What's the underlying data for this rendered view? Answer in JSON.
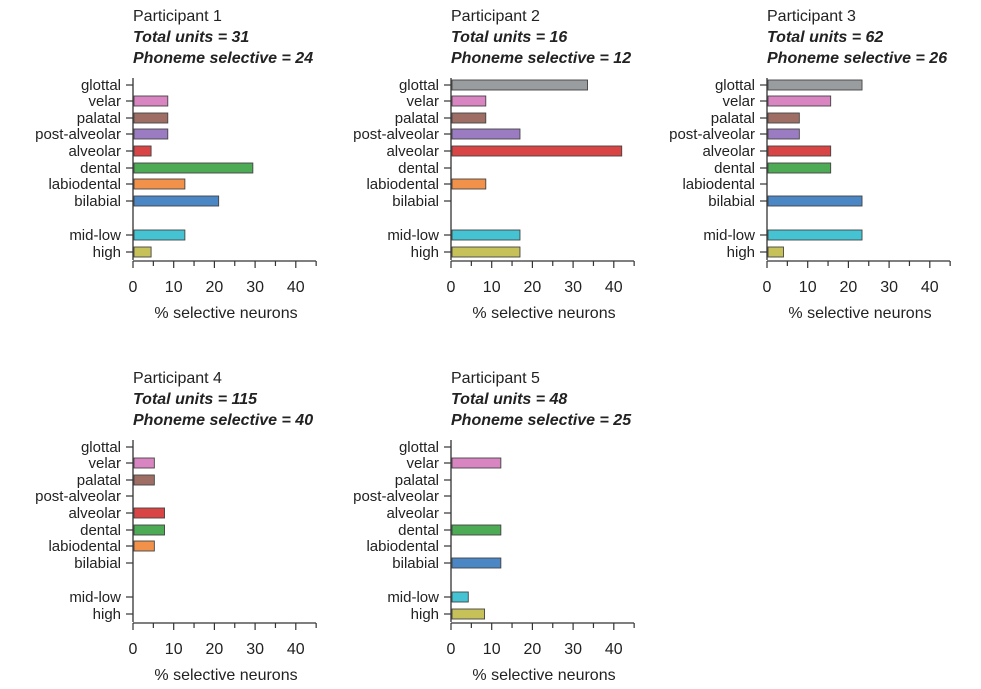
{
  "categories": [
    "glottal",
    "velar",
    "palatal",
    "post-alveolar",
    "alveolar",
    "dental",
    "labiodental",
    "bilabial",
    "mid-low",
    "high"
  ],
  "colors": {
    "glottal": "#9a9da0",
    "velar": "#d985c2",
    "palatal": "#9e6e64",
    "post-alveolar": "#9b7cc2",
    "alveolar": "#d94545",
    "dental": "#4daa55",
    "labiodental": "#f2914a",
    "bilabial": "#4b86c5",
    "mid-low": "#45c3d2",
    "high": "#c7c15a"
  },
  "chart_data": [
    {
      "type": "bar",
      "title": "Participant 1",
      "subtitle_units": "Total units = 31",
      "subtitle_selective": "Phoneme selective = 24",
      "xlabel": "% selective neurons",
      "xlim": [
        0,
        45
      ],
      "xticks": [
        0,
        10,
        20,
        30,
        40
      ],
      "categories": [
        "glottal",
        "velar",
        "palatal",
        "post-alveolar",
        "alveolar",
        "dental",
        "labiodental",
        "bilabial",
        "mid-low",
        "high"
      ],
      "values": [
        0,
        8.3,
        8.3,
        8.3,
        4.2,
        29.2,
        12.5,
        20.8,
        12.5,
        4.2
      ]
    },
    {
      "type": "bar",
      "title": "Participant 2",
      "subtitle_units": "Total units = 16",
      "subtitle_selective": "Phoneme selective = 12",
      "xlabel": "% selective neurons",
      "xlim": [
        0,
        45
      ],
      "xticks": [
        0,
        10,
        20,
        30,
        40
      ],
      "categories": [
        "glottal",
        "velar",
        "palatal",
        "post-alveolar",
        "alveolar",
        "dental",
        "labiodental",
        "bilabial",
        "mid-low",
        "high"
      ],
      "values": [
        33.3,
        8.3,
        8.3,
        16.7,
        41.7,
        0,
        8.3,
        0,
        16.7,
        16.7
      ]
    },
    {
      "type": "bar",
      "title": "Participant 3",
      "subtitle_units": "Total units = 62",
      "subtitle_selective": "Phoneme selective = 26",
      "xlabel": "% selective neurons",
      "xlim": [
        0,
        45
      ],
      "xticks": [
        0,
        10,
        20,
        30,
        40
      ],
      "categories": [
        "glottal",
        "velar",
        "palatal",
        "post-alveolar",
        "alveolar",
        "dental",
        "labiodental",
        "bilabial",
        "mid-low",
        "high"
      ],
      "values": [
        23.1,
        15.4,
        7.7,
        7.7,
        15.4,
        15.4,
        0,
        23.1,
        23.1,
        3.8
      ]
    },
    {
      "type": "bar",
      "title": "Participant 4",
      "subtitle_units": "Total units = 115",
      "subtitle_selective": "Phoneme selective = 40",
      "xlabel": "% selective neurons",
      "xlim": [
        0,
        45
      ],
      "xticks": [
        0,
        10,
        20,
        30,
        40
      ],
      "categories": [
        "glottal",
        "velar",
        "palatal",
        "post-alveolar",
        "alveolar",
        "dental",
        "labiodental",
        "bilabial",
        "mid-low",
        "high"
      ],
      "values": [
        0,
        5,
        5,
        0,
        7.5,
        7.5,
        5,
        0,
        0,
        0
      ]
    },
    {
      "type": "bar",
      "title": "Participant 5",
      "subtitle_units": "Total units = 48",
      "subtitle_selective": "Phoneme selective = 25",
      "xlabel": "% selective neurons",
      "xlim": [
        0,
        45
      ],
      "xticks": [
        0,
        10,
        20,
        30,
        40
      ],
      "categories": [
        "glottal",
        "velar",
        "palatal",
        "post-alveolar",
        "alveolar",
        "dental",
        "labiodental",
        "bilabial",
        "mid-low",
        "high"
      ],
      "values": [
        0,
        12,
        0,
        0,
        0,
        12,
        0,
        12,
        4,
        8
      ]
    }
  ]
}
